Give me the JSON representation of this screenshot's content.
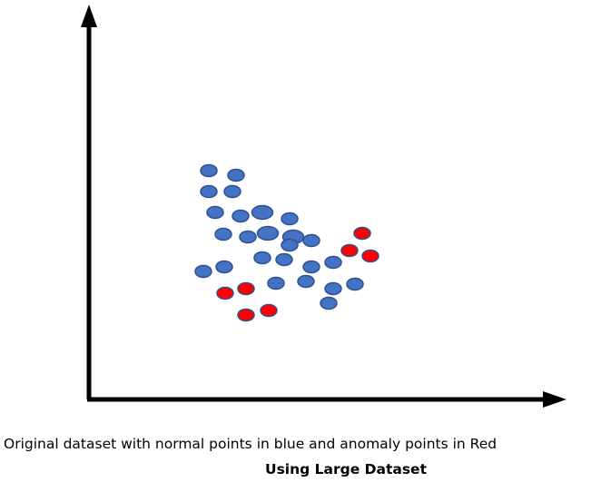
{
  "caption": "Original dataset with normal points in blue and anomaly points in Red",
  "subcaption": "Using Large Dataset",
  "colors": {
    "normal_fill": "#4472c4",
    "normal_stroke": "#2f528f",
    "anomaly_fill": "#ff0000",
    "anomaly_stroke": "#2f528f",
    "axis": "#000000"
  },
  "chart_data": {
    "type": "scatter",
    "title": "",
    "xlabel": "",
    "ylabel": "",
    "grid": false,
    "series": [
      {
        "class": "normal",
        "color": "#4472c4",
        "points": [
          [
            230,
            188
          ],
          [
            260,
            193
          ],
          [
            230,
            211
          ],
          [
            256,
            211
          ],
          [
            237,
            234
          ],
          [
            265,
            238
          ],
          [
            289,
            234
          ],
          [
            319,
            241
          ],
          [
            246,
            258
          ],
          [
            273,
            261
          ],
          [
            295,
            257
          ],
          [
            323,
            261
          ],
          [
            343,
            265
          ],
          [
            319,
            270
          ],
          [
            289,
            284
          ],
          [
            313,
            286
          ],
          [
            247,
            294
          ],
          [
            224,
            299
          ],
          [
            343,
            294
          ],
          [
            367,
            289
          ],
          [
            304,
            312
          ],
          [
            337,
            310
          ],
          [
            367,
            318
          ],
          [
            391,
            313
          ],
          [
            362,
            334
          ]
        ]
      },
      {
        "class": "anomaly",
        "color": "#ff0000",
        "points": [
          [
            399,
            257
          ],
          [
            385,
            276
          ],
          [
            408,
            282
          ],
          [
            248,
            323
          ],
          [
            271,
            318
          ],
          [
            271,
            347
          ],
          [
            296,
            342
          ]
        ]
      }
    ]
  }
}
